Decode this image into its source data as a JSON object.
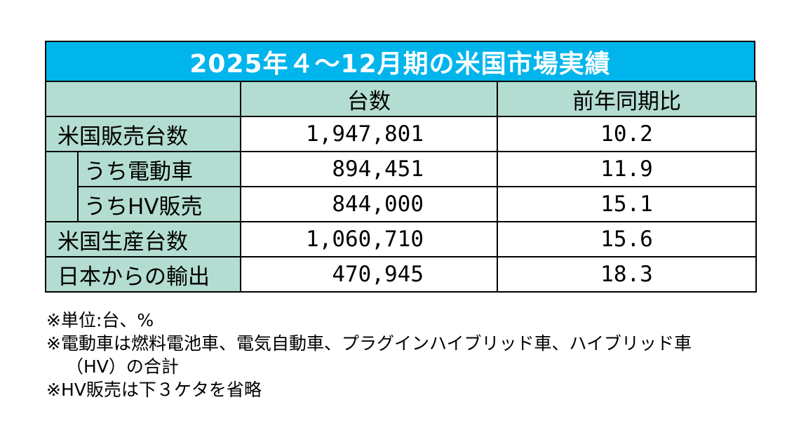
{
  "title": "2025年４～12月期の米国市場実績",
  "headers": {
    "units": "台数",
    "yoy": "前年同期比"
  },
  "rows": [
    {
      "label": "米国販売台数",
      "units": "1,947,801",
      "yoy": "10.2"
    },
    {
      "label": "うち電動車",
      "units": "894,451",
      "yoy": "11.9"
    },
    {
      "label": "うちHV販売",
      "units": "844,000",
      "yoy": "15.1"
    },
    {
      "label": "米国生産台数",
      "units": "1,060,710",
      "yoy": "15.6"
    },
    {
      "label": "日本からの輸出",
      "units": "470,945",
      "yoy": "18.3"
    }
  ],
  "notes": [
    "※単位:台、%",
    "※電動車は燃料電池車、電気自動車、プラグインハイブリッド車、ハイブリッド車",
    "（HV）の合計",
    "※HV販売は下３ケタを省略"
  ],
  "colors": {
    "title_bg": "#00b4ec",
    "title_text": "#ffffff",
    "label_bg": "#b4ddd2",
    "border": "#000000"
  }
}
